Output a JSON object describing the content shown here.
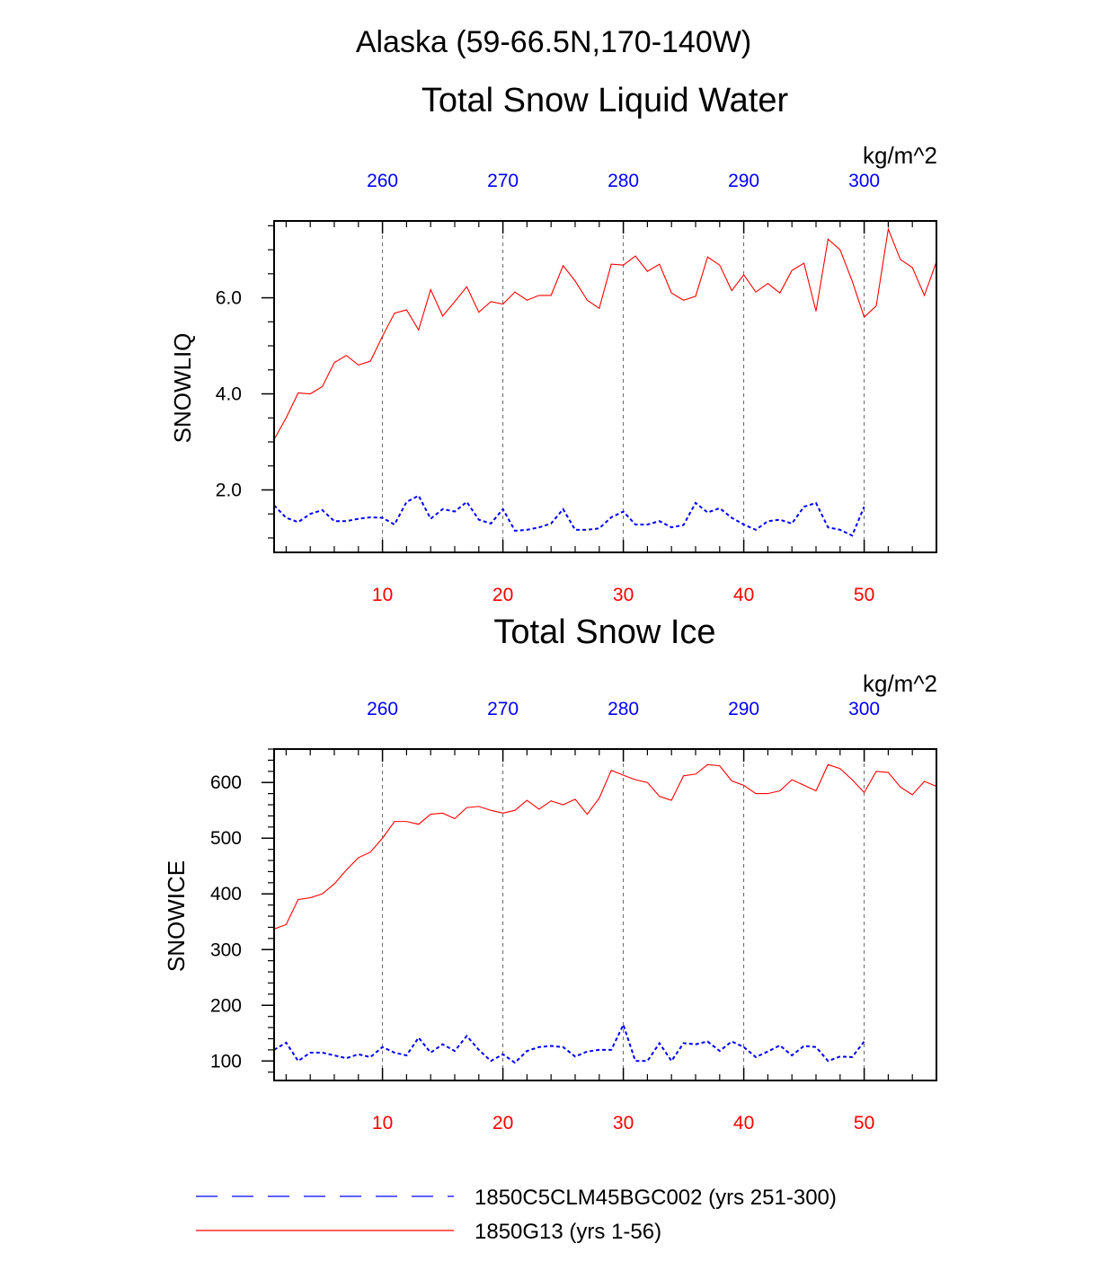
{
  "suptitle": "Alaska (59-66.5N,170-140W)",
  "colors": {
    "model_a": "#ff0000",
    "model_b": "#0000ff",
    "frame": "#000000",
    "grid": "#555555"
  },
  "legend": [
    {
      "label": "1850C5CLM45BGC002 (yrs 251-300)",
      "color": "#0000ff",
      "style": "dashed"
    },
    {
      "label": "1850G13 (yrs 1-56)",
      "color": "#ff0000",
      "style": "solid"
    }
  ],
  "chart_data": [
    {
      "type": "line",
      "title": "Total Snow Liquid Water",
      "ylabel": "SNOWLIQ",
      "units": "kg/m^2",
      "xlim": [
        1,
        56
      ],
      "ylim": [
        0.7,
        7.6
      ],
      "yticks": [
        2.0,
        4.0,
        6.0
      ],
      "ytick_labels": [
        "2.0",
        "4.0",
        "6.0"
      ],
      "ytick_minor": 0.5,
      "bottom_axis": {
        "ticks": [
          10,
          20,
          30,
          40,
          50
        ],
        "labels": [
          "10",
          "20",
          "30",
          "40",
          "50"
        ],
        "color": "#ff0000"
      },
      "top_axis": {
        "ticks": [
          10,
          20,
          30,
          40,
          50
        ],
        "labels": [
          "260",
          "270",
          "280",
          "290",
          "300"
        ],
        "color": "#0000ff"
      },
      "series": [
        {
          "name": "1850G13 (yrs 1-56)",
          "color": "#ff0000",
          "style": "solid",
          "x_start": 1,
          "values": [
            3.05,
            3.5,
            4.02,
            4.0,
            4.15,
            4.65,
            4.8,
            4.6,
            4.68,
            5.2,
            5.68,
            5.75,
            5.33,
            6.17,
            5.62,
            5.92,
            6.23,
            5.7,
            5.92,
            5.87,
            6.12,
            5.95,
            6.05,
            6.05,
            6.67,
            6.35,
            5.95,
            5.78,
            6.7,
            6.68,
            6.87,
            6.55,
            6.7,
            6.1,
            5.95,
            6.03,
            6.85,
            6.68,
            6.15,
            6.48,
            6.12,
            6.3,
            6.1,
            6.57,
            6.72,
            5.72,
            7.22,
            7.0,
            6.35,
            5.6,
            5.83,
            7.43,
            6.8,
            6.63,
            6.05,
            6.75
          ]
        },
        {
          "name": "1850C5CLM45BGC002 (yrs 251-300)",
          "color": "#0000ff",
          "style": "dashed",
          "x_start": 1,
          "values": [
            1.68,
            1.42,
            1.33,
            1.5,
            1.58,
            1.35,
            1.35,
            1.4,
            1.43,
            1.42,
            1.28,
            1.75,
            1.88,
            1.4,
            1.6,
            1.55,
            1.75,
            1.38,
            1.3,
            1.6,
            1.15,
            1.17,
            1.22,
            1.3,
            1.6,
            1.17,
            1.17,
            1.2,
            1.43,
            1.55,
            1.28,
            1.28,
            1.35,
            1.22,
            1.27,
            1.73,
            1.53,
            1.62,
            1.42,
            1.28,
            1.17,
            1.35,
            1.38,
            1.3,
            1.65,
            1.73,
            1.22,
            1.17,
            1.05,
            1.65
          ]
        }
      ]
    },
    {
      "type": "line",
      "title": "Total Snow Ice",
      "ylabel": "SNOWICE",
      "units": "kg/m^2",
      "xlim": [
        1,
        56
      ],
      "ylim": [
        65,
        660
      ],
      "yticks": [
        100,
        200,
        300,
        400,
        500,
        600
      ],
      "ytick_labels": [
        "100",
        "200",
        "300",
        "400",
        "500",
        "600"
      ],
      "ytick_minor": 20,
      "bottom_axis": {
        "ticks": [
          10,
          20,
          30,
          40,
          50
        ],
        "labels": [
          "10",
          "20",
          "30",
          "40",
          "50"
        ],
        "color": "#ff0000"
      },
      "top_axis": {
        "ticks": [
          10,
          20,
          30,
          40,
          50
        ],
        "labels": [
          "260",
          "270",
          "280",
          "290",
          "300"
        ],
        "color": "#0000ff"
      },
      "series": [
        {
          "name": "1850G13 (yrs 1-56)",
          "color": "#ff0000",
          "style": "solid",
          "x_start": 1,
          "values": [
            337,
            345,
            390,
            393,
            400,
            418,
            443,
            465,
            475,
            500,
            530,
            530,
            525,
            543,
            545,
            535,
            555,
            557,
            550,
            545,
            550,
            568,
            552,
            567,
            560,
            570,
            543,
            572,
            622,
            613,
            605,
            600,
            575,
            568,
            612,
            615,
            632,
            630,
            603,
            595,
            580,
            580,
            585,
            605,
            595,
            585,
            632,
            625,
            605,
            582,
            620,
            618,
            592,
            578,
            602,
            593
          ]
        },
        {
          "name": "1850C5CLM45BGC002 (yrs 251-300)",
          "color": "#0000ff",
          "style": "dashed",
          "x_start": 1,
          "values": [
            120,
            133,
            100,
            115,
            115,
            110,
            105,
            112,
            107,
            125,
            115,
            110,
            142,
            115,
            130,
            118,
            145,
            120,
            100,
            112,
            97,
            118,
            125,
            127,
            125,
            108,
            117,
            120,
            120,
            165,
            100,
            100,
            132,
            100,
            132,
            130,
            135,
            118,
            135,
            125,
            107,
            117,
            128,
            110,
            127,
            125,
            100,
            108,
            107,
            135
          ]
        }
      ]
    }
  ]
}
